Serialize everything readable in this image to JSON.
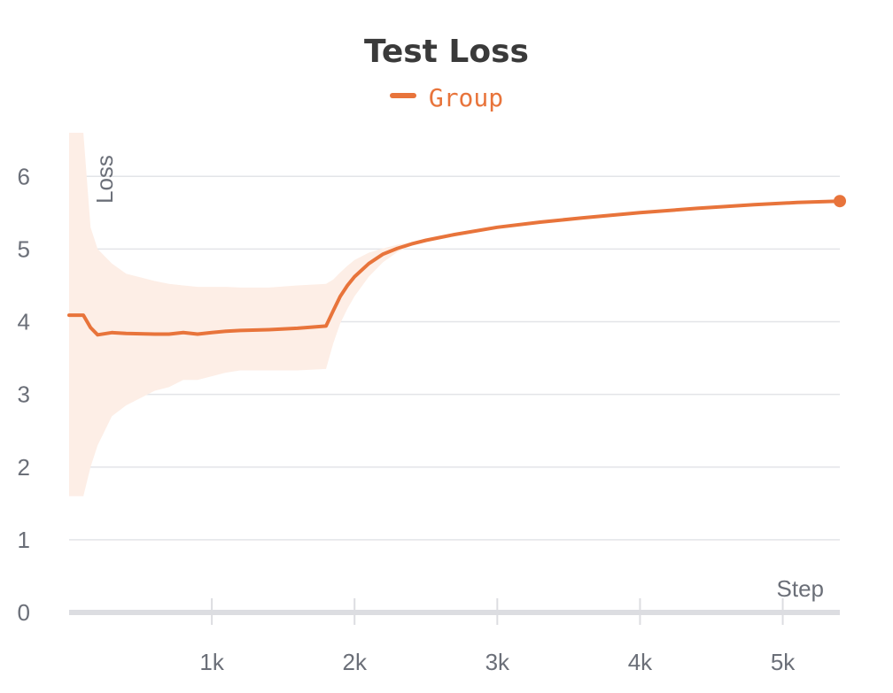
{
  "chart_data": {
    "type": "line",
    "title": "Test Loss",
    "xlabel": "Step",
    "ylabel": "Loss",
    "xlim": [
      0,
      5400
    ],
    "ylim": [
      0,
      6.6
    ],
    "x_ticks": [
      1000,
      2000,
      3000,
      4000,
      5000
    ],
    "x_tick_labels": [
      "1k",
      "2k",
      "3k",
      "4k",
      "5k"
    ],
    "y_ticks": [
      0,
      1,
      2,
      3,
      4,
      5,
      6
    ],
    "y_tick_labels": [
      "0",
      "1",
      "2",
      "3",
      "4",
      "5",
      "6"
    ],
    "grid": "horizontal",
    "legend_position": "top-center",
    "series": [
      {
        "name": "Group",
        "color": "#e8743b",
        "band_color": "#fdeee6",
        "x": [
          0,
          100,
          150,
          200,
          300,
          400,
          600,
          700,
          800,
          900,
          1000,
          1100,
          1200,
          1400,
          1600,
          1800,
          1850,
          1900,
          1950,
          2000,
          2100,
          2200,
          2300,
          2400,
          2500,
          2700,
          3000,
          3300,
          3600,
          4000,
          4400,
          4800,
          5100,
          5400
        ],
        "y": [
          4.09,
          4.09,
          3.92,
          3.82,
          3.85,
          3.84,
          3.83,
          3.83,
          3.85,
          3.83,
          3.85,
          3.87,
          3.88,
          3.89,
          3.91,
          3.94,
          4.15,
          4.35,
          4.5,
          4.62,
          4.8,
          4.93,
          5.01,
          5.07,
          5.12,
          5.2,
          5.3,
          5.37,
          5.43,
          5.5,
          5.56,
          5.61,
          5.64,
          5.66
        ],
        "upper": [
          6.6,
          6.6,
          5.3,
          5.0,
          4.8,
          4.66,
          4.56,
          4.52,
          4.5,
          4.48,
          4.48,
          4.48,
          4.47,
          4.47,
          4.5,
          4.52,
          4.58,
          4.68,
          4.77,
          4.85,
          4.95,
          5.01,
          5.06,
          5.1,
          5.14,
          5.21,
          5.31,
          5.38,
          5.44,
          5.51,
          5.57,
          5.62,
          5.65,
          5.67
        ],
        "lower": [
          1.6,
          1.6,
          2.0,
          2.3,
          2.7,
          2.85,
          3.05,
          3.1,
          3.2,
          3.2,
          3.25,
          3.3,
          3.33,
          3.33,
          3.33,
          3.35,
          3.7,
          3.98,
          4.18,
          4.35,
          4.62,
          4.82,
          4.96,
          5.05,
          5.1,
          5.19,
          5.29,
          5.36,
          5.42,
          5.49,
          5.55,
          5.6,
          5.63,
          5.65
        ]
      }
    ]
  }
}
